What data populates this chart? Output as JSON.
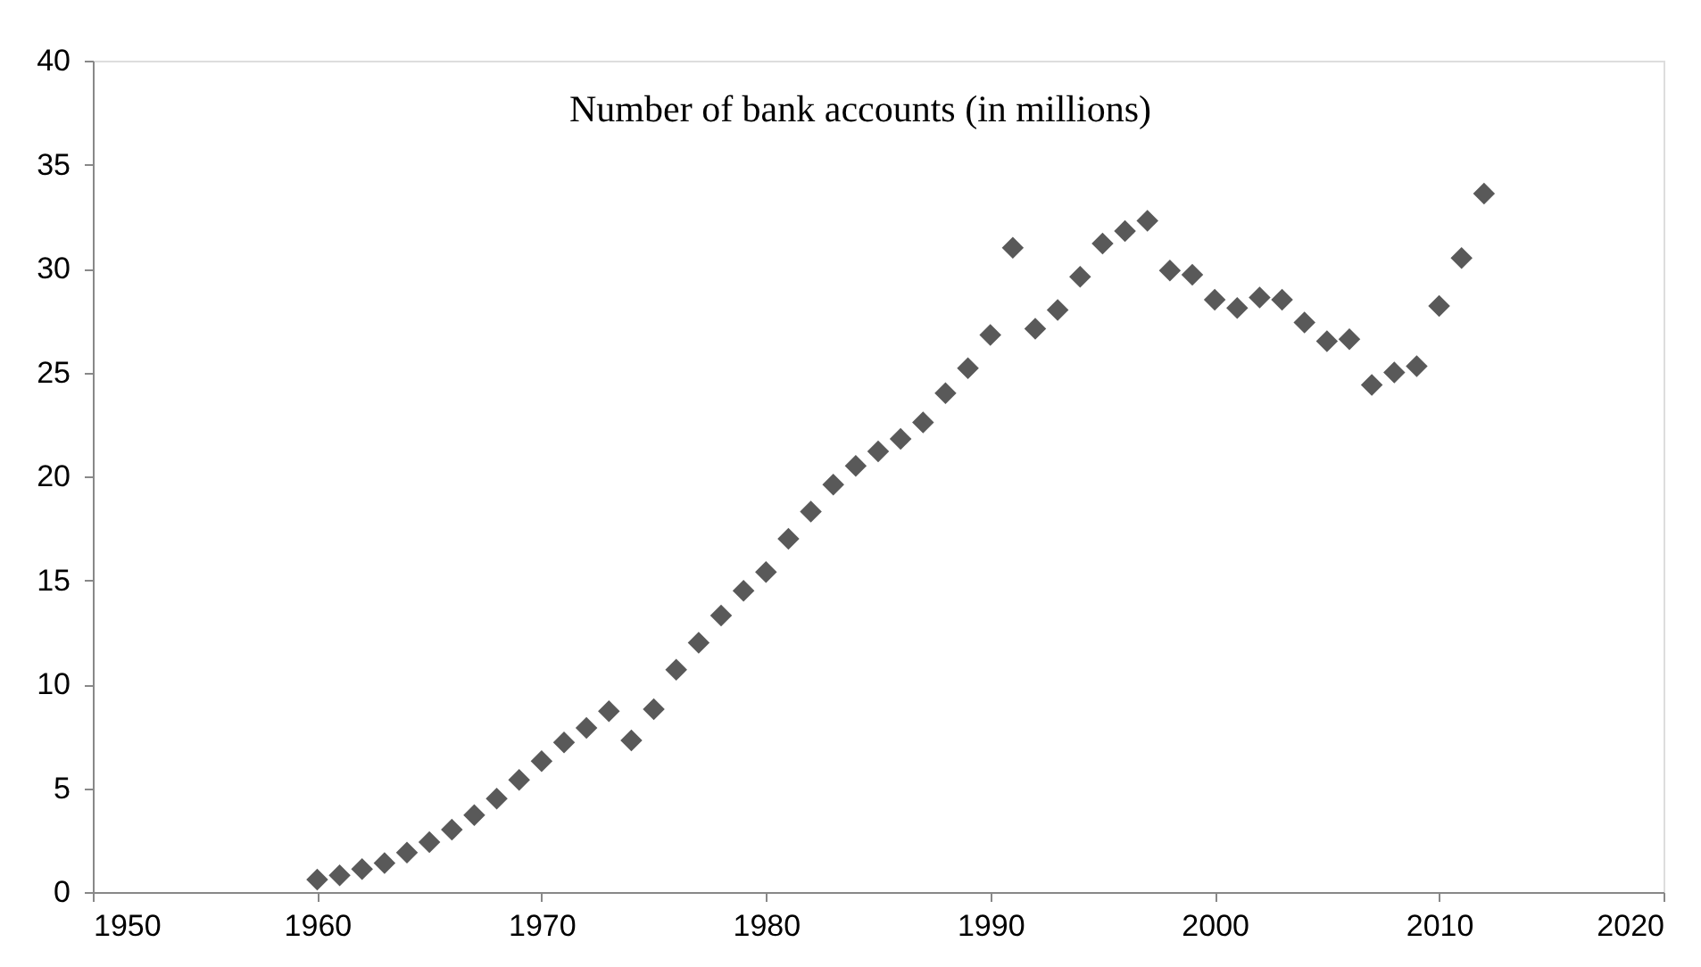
{
  "chart_data": {
    "type": "scatter",
    "title": "Number of bank accounts (in millions)",
    "x": [
      1960,
      1961,
      1962,
      1963,
      1964,
      1965,
      1966,
      1967,
      1968,
      1969,
      1970,
      1971,
      1972,
      1973,
      1974,
      1975,
      1976,
      1977,
      1978,
      1979,
      1980,
      1981,
      1982,
      1983,
      1984,
      1985,
      1986,
      1987,
      1988,
      1989,
      1990,
      1991,
      1992,
      1993,
      1994,
      1995,
      1996,
      1997,
      1998,
      1999,
      2000,
      2001,
      2002,
      2003,
      2004,
      2005,
      2006,
      2007,
      2008,
      2009,
      2010,
      2011,
      2012
    ],
    "series": [
      {
        "color": "#595959",
        "values": [
          0.6,
          0.8,
          1.1,
          1.4,
          1.9,
          2.4,
          3.0,
          3.7,
          4.5,
          5.4,
          6.3,
          7.2,
          7.9,
          8.7,
          7.3,
          8.8,
          10.7,
          12.0,
          13.3,
          14.5,
          15.4,
          17.0,
          18.3,
          19.6,
          20.5,
          21.2,
          21.8,
          22.6,
          24.0,
          25.2,
          26.8,
          31.0,
          27.1,
          28.0,
          29.6,
          31.2,
          31.8,
          32.3,
          29.9,
          29.7,
          28.5,
          28.1,
          28.6,
          28.5,
          27.4,
          26.5,
          26.6,
          24.4,
          25.0,
          25.3,
          28.2,
          30.5,
          33.6
        ]
      }
    ],
    "xlim": [
      1950,
      2020
    ],
    "xticks": [
      1950,
      1960,
      1970,
      1980,
      1990,
      2000,
      2010,
      2020
    ],
    "ylim": [
      0,
      40
    ],
    "yticks": [
      0,
      5,
      10,
      15,
      20,
      25,
      30,
      35,
      40
    ],
    "marker": "diamond",
    "grid": false
  }
}
